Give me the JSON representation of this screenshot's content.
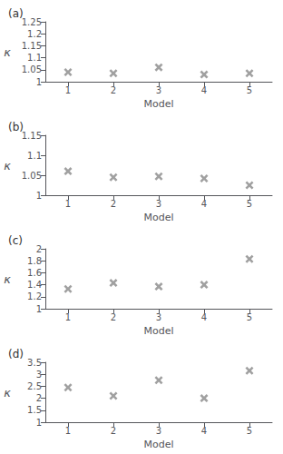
{
  "chart_data": [
    {
      "type": "scatter",
      "title": "(a)",
      "xlabel": "Model",
      "ylabel": "κ",
      "x": [
        1,
        2,
        3,
        4,
        5
      ],
      "values": [
        1.04,
        1.035,
        1.06,
        1.03,
        1.035
      ],
      "xlim": [
        0.5,
        5.5
      ],
      "xticks": [
        1,
        2,
        3,
        4,
        5
      ],
      "ylim": [
        1,
        1.25
      ],
      "yticks": [
        1,
        1.05,
        1.1,
        1.15,
        1.2,
        1.25
      ],
      "color": "#888888",
      "marker": "x",
      "grid": false
    },
    {
      "type": "scatter",
      "title": "(b)",
      "xlabel": "Model",
      "ylabel": "κ",
      "x": [
        1,
        2,
        3,
        4,
        5
      ],
      "values": [
        1.06,
        1.045,
        1.047,
        1.042,
        1.025
      ],
      "xlim": [
        0.5,
        5.5
      ],
      "xticks": [
        1,
        2,
        3,
        4,
        5
      ],
      "ylim": [
        1,
        1.15
      ],
      "yticks": [
        1,
        1.05,
        1.1,
        1.15
      ],
      "color": "#888888",
      "marker": "x",
      "grid": false
    },
    {
      "type": "scatter",
      "title": "(c)",
      "xlabel": "Model",
      "ylabel": "κ",
      "x": [
        1,
        2,
        3,
        4,
        5
      ],
      "values": [
        1.33,
        1.43,
        1.37,
        1.4,
        1.83
      ],
      "xlim": [
        0.5,
        5.5
      ],
      "xticks": [
        1,
        2,
        3,
        4,
        5
      ],
      "ylim": [
        1,
        2
      ],
      "yticks": [
        1,
        1.2,
        1.4,
        1.6,
        1.8,
        2
      ],
      "color": "#888888",
      "marker": "x",
      "grid": false
    },
    {
      "type": "scatter",
      "title": "(d)",
      "xlabel": "Model",
      "ylabel": "κ",
      "x": [
        1,
        2,
        3,
        4,
        5
      ],
      "values": [
        2.45,
        2.1,
        2.75,
        2.0,
        3.15
      ],
      "xlim": [
        0.5,
        5.5
      ],
      "xticks": [
        1,
        2,
        3,
        4,
        5
      ],
      "ylim": [
        1,
        3.5
      ],
      "yticks": [
        1,
        1.5,
        2,
        2.5,
        3,
        3.5
      ],
      "color": "#888888",
      "marker": "x",
      "grid": false
    }
  ]
}
